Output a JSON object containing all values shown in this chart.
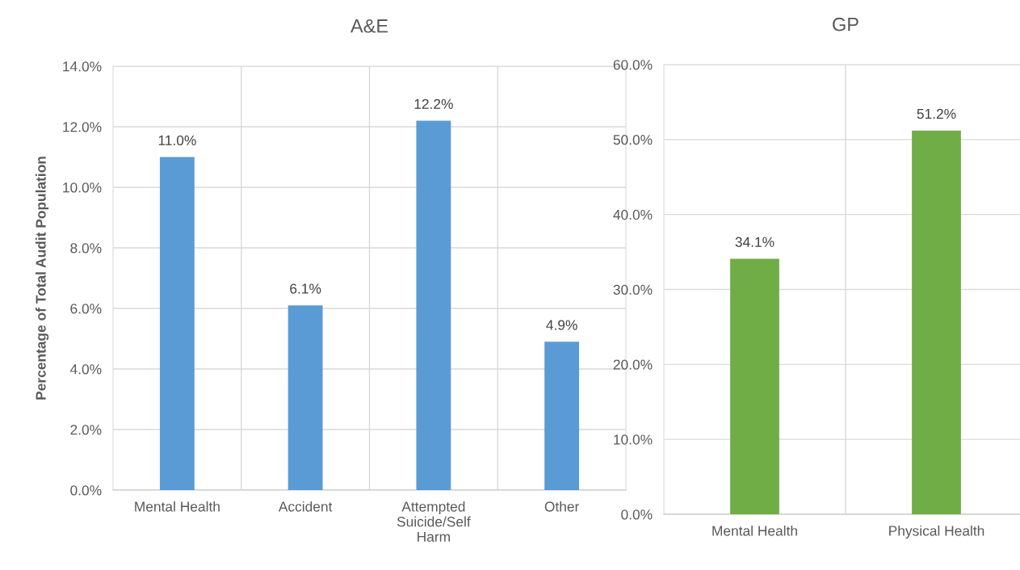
{
  "chart_data": [
    {
      "type": "bar",
      "title": "A&E",
      "ylabel": "Percentage of Total Audit Population",
      "categories": [
        "Mental Health",
        "Accident",
        "Attempted\nSuicide/Self\nHarm",
        "Other"
      ],
      "values": [
        11.0,
        6.1,
        12.2,
        4.9
      ],
      "color": "#5b9bd5",
      "value_labels": [
        "11.0%",
        "6.1%",
        "12.2%",
        "4.9%"
      ],
      "ylim": [
        0,
        14
      ],
      "yticks": [
        {
          "value": 0,
          "label": "0.0%"
        },
        {
          "value": 2,
          "label": "2.0%"
        },
        {
          "value": 4,
          "label": "4.0%"
        },
        {
          "value": 6,
          "label": "6.0%"
        },
        {
          "value": 8,
          "label": "8.0%"
        },
        {
          "value": 10,
          "label": "10.0%"
        },
        {
          "value": 12,
          "label": "12.0%"
        },
        {
          "value": 14,
          "label": "14.0%"
        }
      ],
      "grid": true
    },
    {
      "type": "bar",
      "title": "GP",
      "categories": [
        "Mental Health",
        "Physical Health"
      ],
      "values": [
        34.1,
        51.2
      ],
      "color": "#70ad47",
      "value_labels": [
        "34.1%",
        "51.2%"
      ],
      "ylim": [
        0,
        60
      ],
      "yticks": [
        {
          "value": 0,
          "label": "0.0%"
        },
        {
          "value": 10,
          "label": "10.0%"
        },
        {
          "value": 20,
          "label": "20.0%"
        },
        {
          "value": 30,
          "label": "30.0%"
        },
        {
          "value": 40,
          "label": "40.0%"
        },
        {
          "value": 50,
          "label": "50.0%"
        },
        {
          "value": 60,
          "label": "60.0%"
        }
      ],
      "grid": true
    }
  ]
}
